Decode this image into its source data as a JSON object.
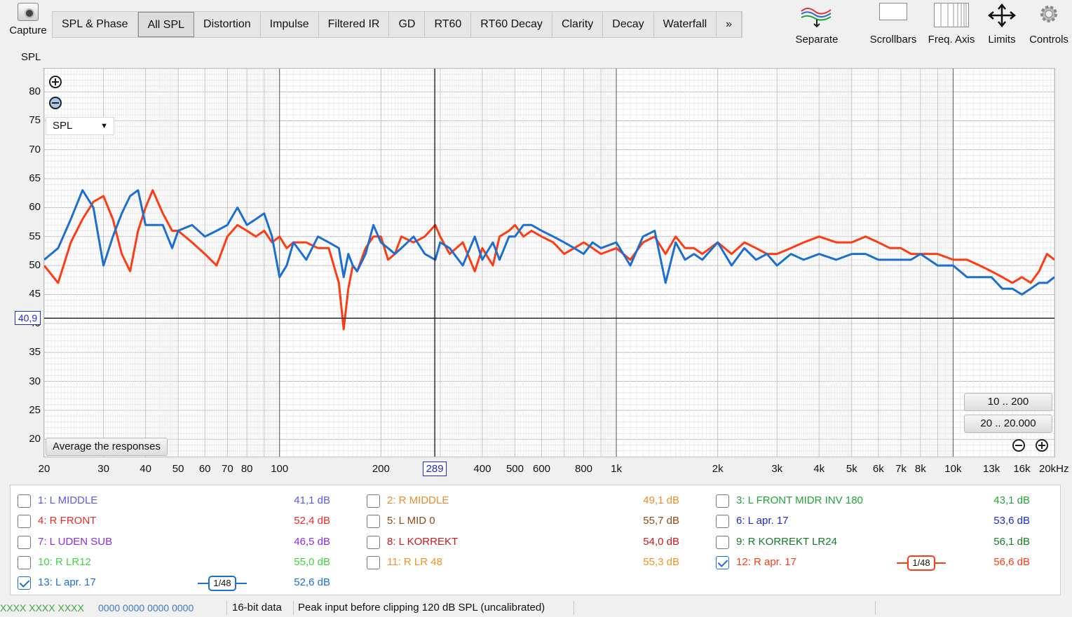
{
  "toolbar": {
    "capture_label": "Capture",
    "tabs": [
      "SPL & Phase",
      "All SPL",
      "Distortion",
      "Impulse",
      "Filtered IR",
      "GD",
      "RT60",
      "RT60 Decay",
      "Clarity",
      "Decay",
      "Waterfall",
      "»"
    ],
    "active_tab": "All SPL",
    "tools": [
      {
        "label": "Separate",
        "icon": "separate-curves-icon"
      },
      {
        "label": "Scrollbars",
        "icon": "scrollbars-icon"
      },
      {
        "label": "Freq. Axis",
        "icon": "freq-axis-icon"
      },
      {
        "label": "Limits",
        "icon": "limits-arrows-icon"
      },
      {
        "label": "Controls",
        "icon": "gear-icon"
      }
    ]
  },
  "graph": {
    "y_axis_title": "SPL",
    "mode_select": "SPL",
    "cursor_y_readout": "40,9",
    "cursor_x_readout": "289",
    "average_button": "Average the responses",
    "range_button_1": "10 .. 200",
    "range_button_2": "20 .. 20.000",
    "y_ticks": [
      "80",
      "75",
      "70",
      "65",
      "60",
      "55",
      "50",
      "45",
      "40",
      "35",
      "30",
      "25",
      "20"
    ],
    "x_ticks": [
      "20",
      "30",
      "40",
      "50",
      "60",
      "70",
      "80",
      "100",
      "200",
      "300",
      "400",
      "500",
      "600",
      "800",
      "1k",
      "2k",
      "3k",
      "4k",
      "5k",
      "6k",
      "7k",
      "8k",
      "10k",
      "13k",
      "16k",
      "20kHz"
    ]
  },
  "chart_data": {
    "type": "line",
    "x_scale": "log",
    "xlim": [
      20,
      20000
    ],
    "ylim": [
      17,
      84
    ],
    "xlabel": "",
    "ylabel": "SPL",
    "grid": true,
    "cursor": {
      "x": 289,
      "y": 40.9
    },
    "series": [
      {
        "name": "12: R apr. 17",
        "color": "#ff3b14",
        "x": [
          20,
          22,
          24,
          26,
          28,
          30,
          32,
          34,
          36,
          38,
          40,
          42,
          45,
          48,
          50,
          55,
          60,
          65,
          70,
          75,
          80,
          85,
          90,
          95,
          100,
          105,
          110,
          120,
          130,
          140,
          150,
          155,
          160,
          165,
          170,
          180,
          190,
          200,
          210,
          220,
          230,
          250,
          270,
          290,
          300,
          320,
          350,
          380,
          400,
          430,
          450,
          480,
          500,
          530,
          560,
          600,
          650,
          700,
          750,
          800,
          850,
          900,
          1000,
          1100,
          1200,
          1300,
          1400,
          1500,
          1600,
          1700,
          1800,
          2000,
          2200,
          2400,
          2600,
          2800,
          3000,
          3300,
          3600,
          4000,
          4500,
          5000,
          5500,
          6000,
          6500,
          7000,
          7500,
          8000,
          9000,
          10000,
          11000,
          12000,
          13000,
          14000,
          15000,
          16000,
          17000,
          18000,
          19000,
          20000
        ],
        "y": [
          50,
          47,
          54,
          58,
          61,
          62,
          58,
          52,
          49,
          56,
          60,
          63,
          59,
          56,
          56,
          54,
          52,
          50,
          55,
          57,
          56,
          55,
          56,
          54,
          55,
          53,
          54,
          54,
          53,
          53,
          47,
          39,
          46,
          50,
          49,
          53,
          55,
          55,
          51,
          52,
          55,
          54,
          55,
          57,
          55,
          52,
          54,
          49,
          53,
          50,
          55,
          56,
          57,
          55,
          56,
          55,
          54,
          52,
          53,
          54,
          53,
          52,
          53,
          51,
          54,
          55,
          52,
          55,
          53,
          53,
          52,
          54,
          52,
          54,
          53,
          52,
          52,
          53,
          54,
          55,
          54,
          54,
          55,
          54,
          53,
          53,
          52,
          52,
          52,
          51,
          51,
          50,
          49,
          48,
          47,
          48,
          47,
          49,
          52,
          51
        ]
      },
      {
        "name": "13: L apr. 17",
        "color": "#1c6fd0",
        "x": [
          20,
          22,
          24,
          26,
          28,
          30,
          32,
          34,
          36,
          38,
          40,
          42,
          45,
          48,
          50,
          55,
          60,
          65,
          70,
          75,
          80,
          85,
          90,
          95,
          100,
          105,
          110,
          120,
          130,
          140,
          150,
          155,
          160,
          165,
          170,
          180,
          190,
          200,
          210,
          220,
          230,
          250,
          270,
          290,
          300,
          320,
          350,
          380,
          400,
          430,
          450,
          480,
          500,
          530,
          560,
          600,
          650,
          700,
          750,
          800,
          850,
          900,
          1000,
          1100,
          1200,
          1300,
          1400,
          1500,
          1600,
          1700,
          1800,
          2000,
          2200,
          2400,
          2600,
          2800,
          3000,
          3300,
          3600,
          4000,
          4500,
          5000,
          5500,
          6000,
          6500,
          7000,
          7500,
          8000,
          9000,
          10000,
          11000,
          12000,
          13000,
          14000,
          15000,
          16000,
          17000,
          18000,
          19000,
          20000
        ],
        "y": [
          51,
          53,
          58,
          63,
          60,
          50,
          55,
          59,
          62,
          63,
          57,
          57,
          57,
          53,
          56,
          57,
          55,
          56,
          57,
          60,
          57,
          58,
          59,
          55,
          48,
          50,
          54,
          51,
          55,
          54,
          53,
          48,
          52,
          50,
          49,
          52,
          57,
          54,
          53,
          52,
          53,
          55,
          52,
          51,
          54,
          53,
          50,
          55,
          51,
          54,
          51,
          55,
          55,
          57,
          57,
          56,
          55,
          54,
          53,
          52,
          54,
          53,
          54,
          50,
          55,
          56,
          47,
          54,
          51,
          52,
          51,
          54,
          50,
          53,
          51,
          52,
          50,
          52,
          51,
          52,
          51,
          52,
          52,
          51,
          51,
          51,
          51,
          52,
          50,
          50,
          48,
          48,
          48,
          46,
          46,
          45,
          46,
          47,
          47,
          48
        ]
      }
    ]
  },
  "legend": {
    "items": [
      {
        "label": "1: L MIDDLE",
        "value": "41,1 dB",
        "color": "#5a5ae6",
        "checked": false
      },
      {
        "label": "2: R MIDDLE",
        "value": "49,1 dB",
        "color": "#f08a2c",
        "checked": false
      },
      {
        "label": "3: L FRONT MIDR INV 180",
        "value": "43,1 dB",
        "color": "#22a33a",
        "checked": false
      },
      {
        "label": "4: R FRONT",
        "value": "52,4 dB",
        "color": "#e82a2a",
        "checked": false
      },
      {
        "label": "5: L MID 0",
        "value": "55,7 dB",
        "color": "#8a4a1a",
        "checked": false
      },
      {
        "label": "6: L apr. 17",
        "value": "53,6 dB",
        "color": "#1a2cc8",
        "checked": false
      },
      {
        "label": "7: L UDEN SUB",
        "value": "46,5 dB",
        "color": "#8a2ce0",
        "checked": false
      },
      {
        "label": "8: L KORREKT",
        "value": "54,0 dB",
        "color": "#c81a1a",
        "checked": false
      },
      {
        "label": "9: R KORREKT LR24",
        "value": "56,1 dB",
        "color": "#157a28",
        "checked": false
      },
      {
        "label": "10: R LR12",
        "value": "55,0 dB",
        "color": "#3cd63c",
        "checked": false
      },
      {
        "label": "11: R LR 48",
        "value": "55,3 dB",
        "color": "#f5901e",
        "checked": false
      },
      {
        "label": "12: R apr. 17",
        "value": "56,6 dB",
        "color": "#ff3b14",
        "checked": true,
        "smoothing": "1/48"
      },
      {
        "label": "13: L apr. 17",
        "value": "52,6 dB",
        "color": "#1c6fd0",
        "checked": true,
        "smoothing": "1/48"
      }
    ]
  },
  "status": {
    "meter1": "XXXX  XXXX XXXX",
    "meter2": "0000 0000   0000 0000",
    "bit_depth": "16-bit data",
    "peak": "Peak input before clipping 120 dB SPL (uncalibrated)"
  }
}
